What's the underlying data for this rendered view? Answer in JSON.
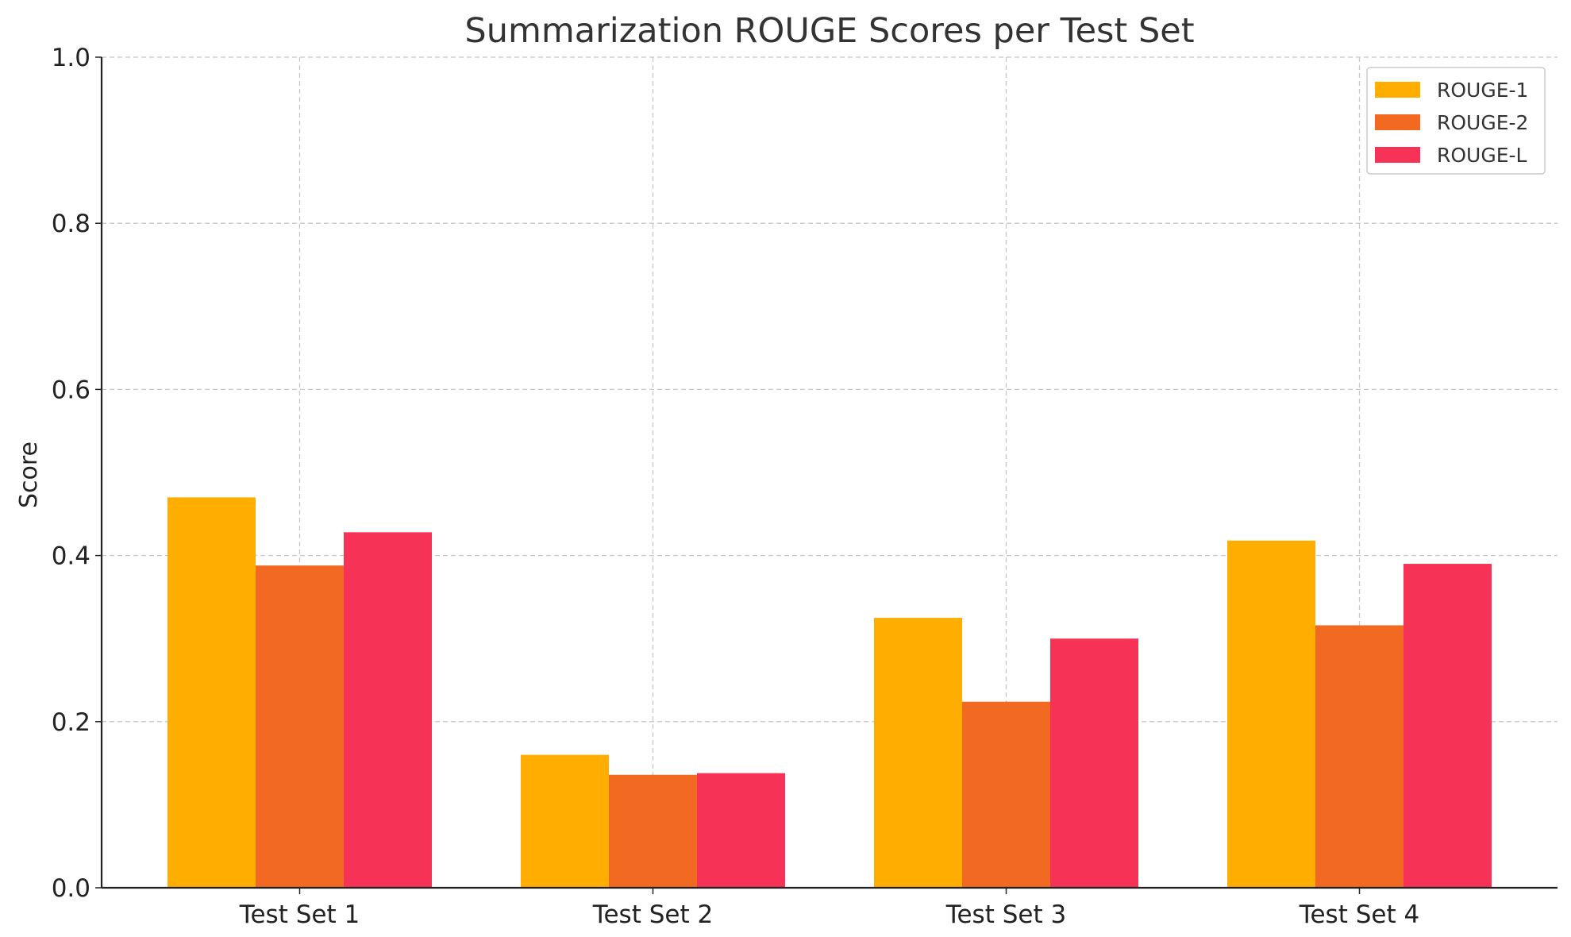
{
  "chart_data": {
    "type": "bar",
    "title": "Summarization ROUGE Scores per Test Set",
    "xlabel": "",
    "ylabel": "Score",
    "ylim": [
      0,
      1.0
    ],
    "yticks": [
      "0.0",
      "0.2",
      "0.4",
      "0.6",
      "0.8",
      "1.0"
    ],
    "categories": [
      "Test Set 1",
      "Test Set 2",
      "Test Set 3",
      "Test Set 4"
    ],
    "series": [
      {
        "name": "ROUGE-1",
        "color": "#FFAE00",
        "values": [
          0.47,
          0.16,
          0.325,
          0.418
        ]
      },
      {
        "name": "ROUGE-2",
        "color": "#F26A21",
        "values": [
          0.388,
          0.136,
          0.224,
          0.316
        ]
      },
      {
        "name": "ROUGE-L",
        "color": "#F73257",
        "values": [
          0.428,
          0.138,
          0.3,
          0.39
        ]
      }
    ],
    "grid": true,
    "legend_position": "top-right"
  }
}
